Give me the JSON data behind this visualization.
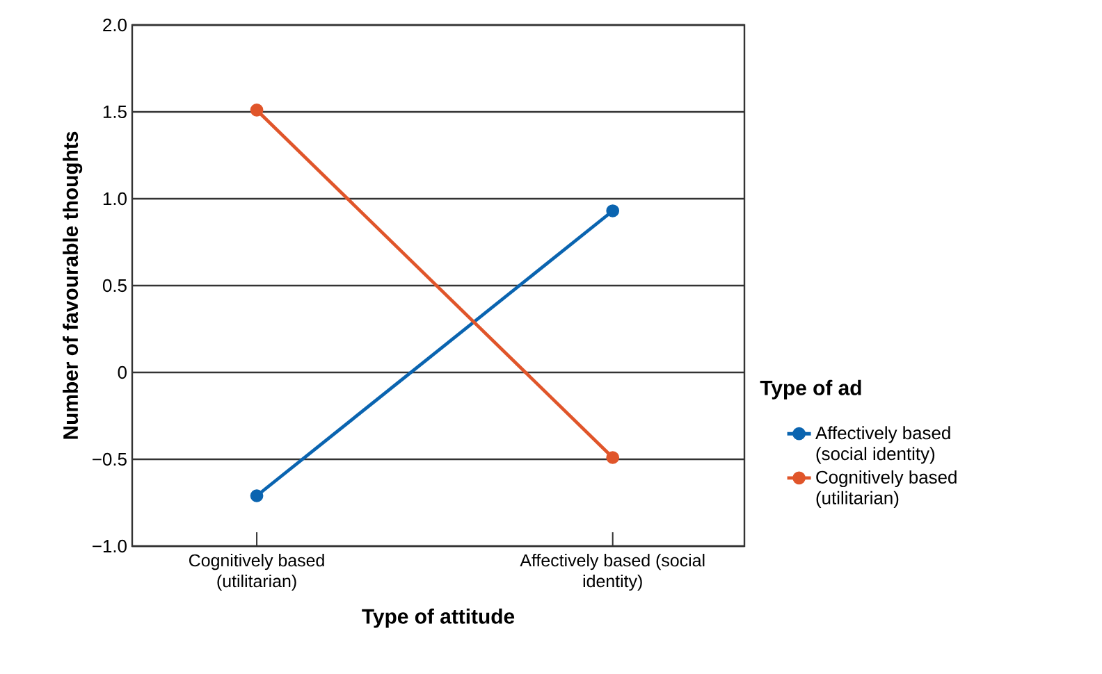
{
  "chart_data": {
    "type": "line",
    "xlabel": "Type of attitude",
    "ylabel": "Number of favourable thoughts",
    "legend_title": "Type of ad",
    "categories": [
      "Cognitively based (utilitarian)",
      "Affectively based (social identity)"
    ],
    "series": [
      {
        "name": "Affectively based (social identity)",
        "color": "#0a64b0",
        "values": [
          -0.71,
          0.93
        ]
      },
      {
        "name": "Cognitively based (utilitarian)",
        "color": "#e0552a",
        "values": [
          1.51,
          -0.49
        ]
      }
    ],
    "ylim": [
      -1,
      2
    ],
    "yticks": [
      {
        "value": -1,
        "label": "−1.0"
      },
      {
        "value": -0.5,
        "label": "−0.5"
      },
      0,
      {
        "value": 0.5,
        "label": "0.5"
      },
      {
        "value": 1,
        "label": "1.0"
      },
      {
        "value": 1.5,
        "label": "1.5"
      },
      {
        "value": 2,
        "label": "2.0"
      }
    ],
    "grid": "y",
    "legend": "right",
    "marker": "circle",
    "line_style": "solid"
  }
}
